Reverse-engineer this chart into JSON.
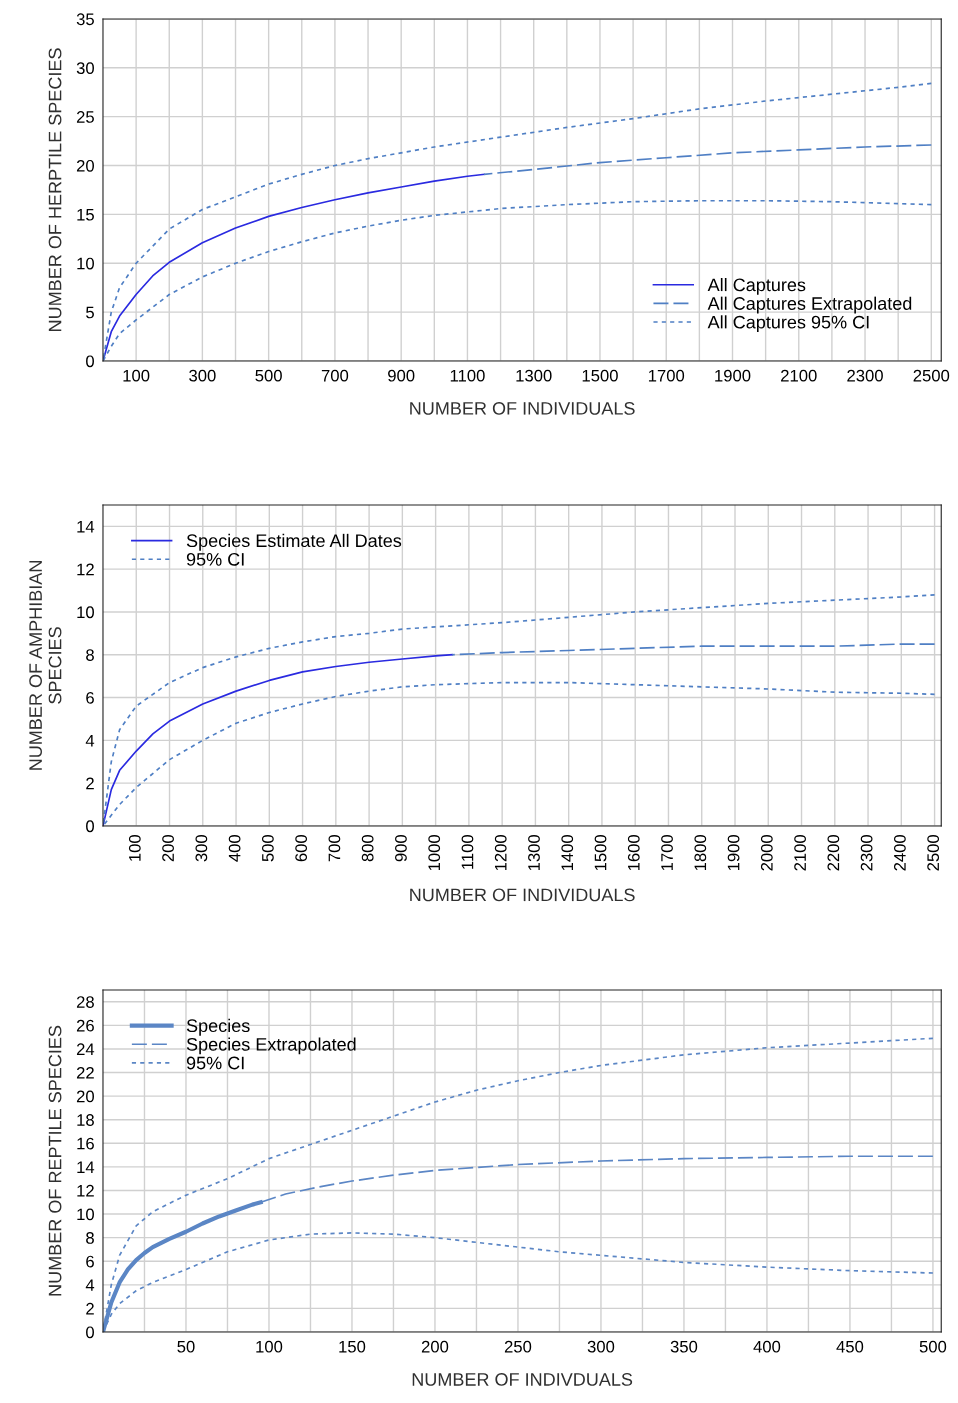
{
  "chart_data": [
    {
      "type": "line",
      "xlabel": "NUMBER OF INDIVIDUALS",
      "ylabel": "NUMBER OF HERPTILE SPECIES",
      "xlim": [
        0,
        2530
      ],
      "ylim": [
        0,
        35
      ],
      "xticks": [
        100,
        {
          "value": 200,
          "label": null
        },
        300,
        {
          "value": 400,
          "label": null
        },
        500,
        {
          "value": 600,
          "label": null
        },
        700,
        {
          "value": 800,
          "label": null
        },
        900,
        {
          "value": 1000,
          "label": null
        },
        1100,
        {
          "value": 1200,
          "label": null
        },
        1300,
        {
          "value": 1400,
          "label": null
        },
        1500,
        {
          "value": 1600,
          "label": null
        },
        1700,
        {
          "value": 1800,
          "label": null
        },
        1900,
        {
          "value": 2000,
          "label": null
        },
        2100,
        {
          "value": 2200,
          "label": null
        },
        2300,
        {
          "value": 2400,
          "label": null
        },
        2500
      ],
      "yticks": [
        0,
        5,
        10,
        15,
        20,
        25,
        30,
        35
      ],
      "grid": true,
      "legend": "bottom right",
      "series": [
        {
          "name": "All Captures",
          "color": "#2a2ae0",
          "line_style": "solid",
          "x": [
            0,
            25,
            50,
            100,
            150,
            200,
            300,
            400,
            500,
            600,
            700,
            800,
            900,
            1000,
            1100,
            1150
          ],
          "values": [
            0,
            3,
            4.6,
            6.8,
            8.7,
            10.1,
            12.1,
            13.6,
            14.8,
            15.7,
            16.5,
            17.2,
            17.8,
            18.4,
            18.9,
            19.1
          ]
        },
        {
          "name": "All Captures Extrapolated",
          "color": "#4f7fc4",
          "line_style": "dashed",
          "x": [
            1150,
            1300,
            1500,
            1700,
            1900,
            2100,
            2300,
            2500
          ],
          "values": [
            19.1,
            19.6,
            20.3,
            20.8,
            21.3,
            21.6,
            21.9,
            22.1
          ]
        },
        {
          "name": "All Captures 95% CI",
          "color": "#4f7fc4",
          "line_style": "dotted",
          "x": [
            0,
            25,
            50,
            100,
            200,
            300,
            400,
            500,
            600,
            700,
            800,
            900,
            1000,
            1200,
            1400,
            1600,
            1800,
            2000,
            2200,
            2400,
            2500
          ],
          "values": [
            0,
            5,
            7.5,
            10,
            13.5,
            15.5,
            16.8,
            18.1,
            19.1,
            20,
            20.7,
            21.3,
            21.9,
            22.9,
            23.9,
            24.8,
            25.8,
            26.6,
            27.3,
            28,
            28.4
          ]
        },
        {
          "color": "#4f7fc4",
          "line_style": "dotted",
          "x": [
            0,
            25,
            50,
            100,
            200,
            300,
            400,
            500,
            600,
            700,
            800,
            900,
            1000,
            1200,
            1400,
            1600,
            1800,
            2000,
            2200,
            2400,
            2500
          ],
          "values": [
            0,
            1.5,
            2.8,
            4.2,
            6.8,
            8.6,
            10,
            11.2,
            12.2,
            13.1,
            13.8,
            14.4,
            14.9,
            15.6,
            16,
            16.3,
            16.4,
            16.4,
            16.3,
            16.1,
            16.0
          ]
        }
      ]
    },
    {
      "type": "line",
      "xlabel": "NUMBER OF INDIVIDUALS",
      "ylabel": "NUMBER OF AMPHIBIAN\nSPECIES",
      "xlim": [
        0,
        2520
      ],
      "ylim": [
        0,
        15
      ],
      "xticks": [
        100,
        200,
        300,
        400,
        500,
        600,
        700,
        800,
        900,
        1000,
        1100,
        1200,
        1300,
        1400,
        1500,
        1600,
        1700,
        1800,
        1900,
        2000,
        2100,
        2200,
        2300,
        2400,
        2500
      ],
      "yticks": [
        0,
        2,
        4,
        6,
        8,
        10,
        12,
        14
      ],
      "grid": true,
      "legend": "top left",
      "series": [
        {
          "name": "Species Estimate All Dates",
          "color": "#2a2ae0",
          "line_style": "solid",
          "x": [
            0,
            25,
            50,
            100,
            150,
            200,
            300,
            400,
            500,
            600,
            700,
            800,
            900,
            1000,
            1050
          ],
          "values": [
            0,
            1.7,
            2.6,
            3.5,
            4.3,
            4.9,
            5.7,
            6.3,
            6.8,
            7.2,
            7.45,
            7.65,
            7.8,
            7.95,
            8.0
          ]
        },
        {
          "color": "#4f7fc4",
          "line_style": "dashed",
          "x": [
            1050,
            1200,
            1400,
            1600,
            1800,
            2000,
            2200,
            2400,
            2500
          ],
          "values": [
            8.0,
            8.1,
            8.2,
            8.3,
            8.4,
            8.4,
            8.4,
            8.5,
            8.5
          ]
        },
        {
          "name": "95% CI",
          "color": "#4f7fc4",
          "line_style": "dotted",
          "x": [
            0,
            25,
            50,
            100,
            200,
            300,
            400,
            500,
            600,
            700,
            800,
            900,
            1000,
            1200,
            1400,
            1600,
            1800,
            2000,
            2200,
            2400,
            2500
          ],
          "values": [
            0,
            3,
            4.5,
            5.6,
            6.7,
            7.4,
            7.9,
            8.3,
            8.6,
            8.85,
            9.0,
            9.2,
            9.3,
            9.5,
            9.75,
            10.0,
            10.2,
            10.4,
            10.55,
            10.7,
            10.8
          ]
        },
        {
          "color": "#4f7fc4",
          "line_style": "dotted",
          "x": [
            0,
            50,
            100,
            200,
            300,
            400,
            500,
            600,
            700,
            800,
            900,
            1000,
            1200,
            1400,
            1600,
            1800,
            2000,
            2200,
            2400,
            2500
          ],
          "values": [
            0,
            1.0,
            1.8,
            3.1,
            4.0,
            4.8,
            5.3,
            5.7,
            6.05,
            6.3,
            6.5,
            6.6,
            6.7,
            6.7,
            6.6,
            6.5,
            6.4,
            6.25,
            6.2,
            6.15
          ]
        }
      ]
    },
    {
      "type": "line",
      "xlabel": "NUMBER OF INDIVDUALS",
      "ylabel": "NUMBER OF REPTILE SPECIES",
      "xlim": [
        0,
        505
      ],
      "ylim": [
        0,
        29
      ],
      "xticks": [
        {
          "value": 25,
          "label": null
        },
        50,
        {
          "value": 75,
          "label": null
        },
        100,
        {
          "value": 125,
          "label": null
        },
        150,
        {
          "value": 175,
          "label": null
        },
        200,
        {
          "value": 225,
          "label": null
        },
        250,
        {
          "value": 275,
          "label": null
        },
        300,
        {
          "value": 325,
          "label": null
        },
        350,
        {
          "value": 375,
          "label": null
        },
        400,
        {
          "value": 425,
          "label": null
        },
        450,
        {
          "value": 475,
          "label": null
        },
        500
      ],
      "yticks": [
        0,
        2,
        4,
        6,
        8,
        10,
        12,
        14,
        16,
        18,
        20,
        22,
        24,
        26,
        28
      ],
      "grid": true,
      "legend": "top left",
      "series": [
        {
          "name": "Species",
          "color": "#5b86c5",
          "line_style": "solid",
          "x": [
            0,
            2,
            5,
            10,
            15,
            20,
            25,
            30,
            40,
            50,
            60,
            70,
            80,
            90,
            95
          ],
          "values": [
            0,
            1,
            2.5,
            4.2,
            5.3,
            6.1,
            6.7,
            7.2,
            7.9,
            8.5,
            9.2,
            9.8,
            10.3,
            10.8,
            11.0
          ]
        },
        {
          "name": "Species Extrapolated",
          "color": "#5b86c5",
          "line_style": "dashed",
          "x": [
            95,
            110,
            130,
            150,
            175,
            200,
            250,
            300,
            350,
            400,
            450,
            500
          ],
          "values": [
            11.0,
            11.7,
            12.3,
            12.8,
            13.3,
            13.7,
            14.2,
            14.5,
            14.7,
            14.8,
            14.9,
            14.9
          ]
        },
        {
          "name": "95% CI",
          "color": "#5b86c5",
          "line_style": "dotted",
          "x": [
            0,
            5,
            10,
            20,
            30,
            50,
            75,
            100,
            125,
            150,
            175,
            200,
            225,
            250,
            275,
            300,
            350,
            400,
            450,
            500
          ],
          "values": [
            0,
            4,
            6.5,
            9,
            10.2,
            11.6,
            13,
            14.7,
            15.9,
            17.1,
            18.3,
            19.5,
            20.5,
            21.3,
            22,
            22.6,
            23.5,
            24.1,
            24.5,
            24.9
          ]
        },
        {
          "color": "#5b86c5",
          "line_style": "dotted",
          "x": [
            0,
            5,
            10,
            20,
            30,
            50,
            75,
            100,
            125,
            150,
            175,
            200,
            225,
            250,
            275,
            300,
            350,
            400,
            450,
            500
          ],
          "values": [
            0,
            1.5,
            2.4,
            3.5,
            4.2,
            5.3,
            6.8,
            7.8,
            8.3,
            8.4,
            8.3,
            8.0,
            7.6,
            7.2,
            6.8,
            6.5,
            5.9,
            5.5,
            5.2,
            5.0
          ]
        }
      ]
    }
  ]
}
